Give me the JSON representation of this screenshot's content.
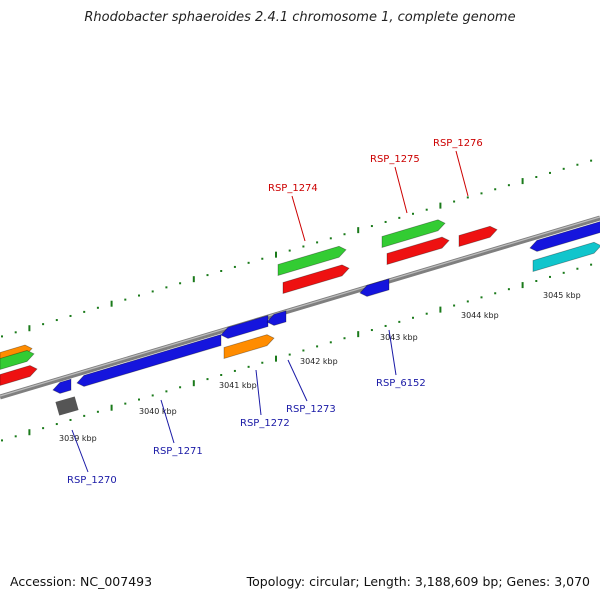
{
  "title": "Rhodobacter sphaeroides 2.4.1 chromosome 1, complete genome",
  "footer": {
    "accession": "Accession: NC_007493",
    "summary": "Topology: circular; Length: 3,188,609 bp; Genes: 3,070"
  },
  "colors": {
    "backbone": "#7f7f7f",
    "tick_dots": "#1a7a1a",
    "label_top": "#cc0000",
    "label_bottom": "#1a1aa6",
    "gene_red": "#ee1111",
    "gene_green": "#33cc33",
    "gene_blue": "#1515dd",
    "gene_orange": "#ff8c00",
    "gene_cyan": "#11c5cc",
    "gene_gray": "#555555"
  },
  "ticks": [
    {
      "label": "3039 kbp"
    },
    {
      "label": "3040 kbp"
    },
    {
      "label": "3041 kbp"
    },
    {
      "label": "3042 kbp"
    },
    {
      "label": "3043 kbp"
    },
    {
      "label": "3044 kbp"
    },
    {
      "label": "3045 kbp"
    }
  ],
  "genes_labeled": [
    {
      "label": "RSP_1274",
      "strand": "top"
    },
    {
      "label": "RSP_1275",
      "strand": "top"
    },
    {
      "label": "RSP_1276",
      "strand": "top"
    },
    {
      "label": "RSP_1270",
      "strand": "bottom"
    },
    {
      "label": "RSP_1271",
      "strand": "bottom"
    },
    {
      "label": "RSP_1272",
      "strand": "bottom"
    },
    {
      "label": "RSP_1273",
      "strand": "bottom"
    },
    {
      "label": "RSP_6152",
      "strand": "bottom"
    }
  ]
}
